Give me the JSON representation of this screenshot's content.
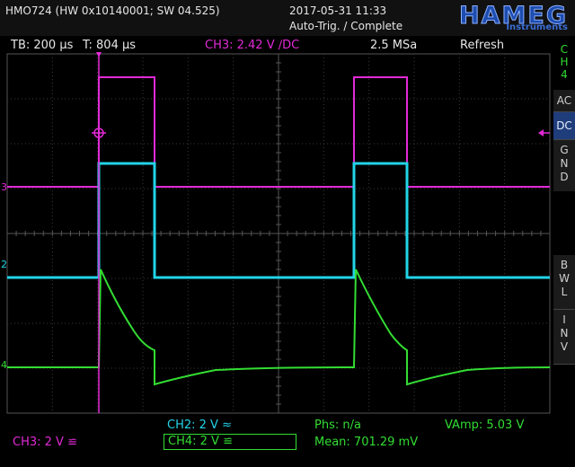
{
  "header": {
    "device": "HMO724 (HW 0x10140001; SW 04.525)",
    "datetime": "2017-05-31 11:33",
    "trigger_status": "Auto-Trig. / Complete",
    "brand": "HAMEG",
    "brand_sub": "Instruments"
  },
  "infobar": {
    "timebase": "TB: 200 µs",
    "trigger_time": "T: 804 µs",
    "trigger_source": "CH3: 2.42 V ∕DC",
    "sample_rate": "2.5 MSa",
    "mode": "Refresh"
  },
  "sidebar": {
    "ch4_label": "C\nH\n4",
    "ac": "AC",
    "dc": "DC",
    "gnd": "G\nN\nD",
    "bwl": "B\nW\nL",
    "inv": "I\nN\nV"
  },
  "bottom": {
    "ch2": "CH2: 2 V ≈",
    "ch4": "CH4: 2 V ≌",
    "ch3": "CH3: 2 V ≌",
    "phs": "Phs: n/a",
    "mean": "Mean: 701.29 mV",
    "vamp": "VAmp: 5.03 V"
  },
  "markers": {
    "ch3": "3",
    "ch2": "2",
    "ch4": "4"
  },
  "colors": {
    "ch2": "#22d4e8",
    "ch3": "#e22ad7",
    "ch4": "#33dd33",
    "grid": "#3a3a3a",
    "active": "#1f3d7a"
  }
}
